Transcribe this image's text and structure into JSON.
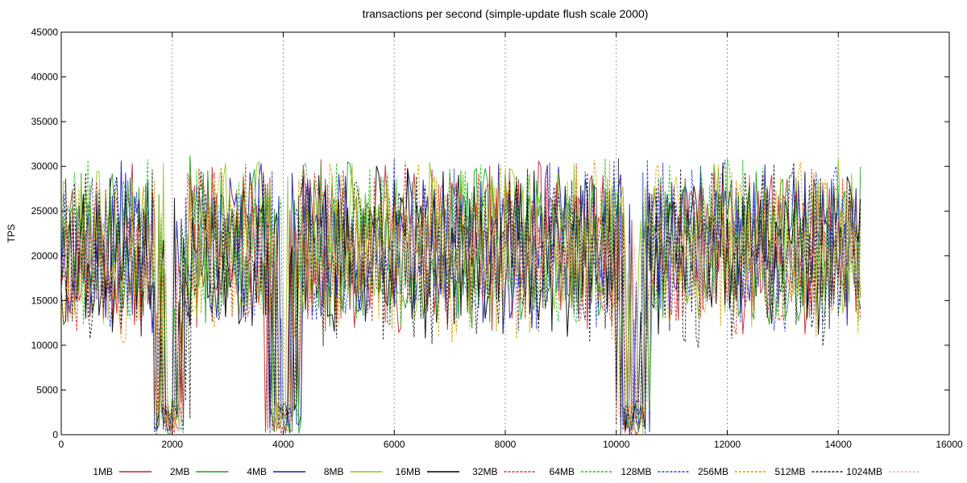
{
  "chart_data": {
    "type": "line",
    "title": "transactions per second (simple-update flush scale 2000)",
    "xlabel": "",
    "ylabel": "TPS",
    "xlim": [
      0,
      16000
    ],
    "ylim": [
      0,
      45000
    ],
    "xticks": [
      0,
      2000,
      4000,
      6000,
      8000,
      10000,
      12000,
      14000,
      16000
    ],
    "yticks": [
      0,
      5000,
      10000,
      15000,
      20000,
      25000,
      30000,
      35000,
      40000,
      45000
    ],
    "grid": "vertical dotted at x ticks",
    "legend_position": "bottom",
    "x_end": 14400,
    "sample_step": 40,
    "series": [
      {
        "name": "1MB",
        "color": "#c1272d",
        "dash": "solid",
        "seed": 11,
        "mean": 21000,
        "amp": 10000,
        "valley_depth": 0.15
      },
      {
        "name": "2MB",
        "color": "#1a9e1a",
        "dash": "solid",
        "seed": 23,
        "mean": 21500,
        "amp": 9800,
        "valley_depth": 0.15
      },
      {
        "name": "4MB",
        "color": "#1a1ab8",
        "dash": "solid",
        "seed": 37,
        "mean": 21000,
        "amp": 9800,
        "valley_depth": 0.15
      },
      {
        "name": "8MB",
        "color": "#8fc61e",
        "dash": "solid",
        "seed": 41,
        "mean": 21500,
        "amp": 9500,
        "valley_depth": 0.12
      },
      {
        "name": "16MB",
        "color": "#000000",
        "dash": "solid",
        "seed": 53,
        "mean": 20500,
        "amp": 10000,
        "valley_depth": 0.15
      },
      {
        "name": "32MB",
        "color": "#e0281e",
        "dash": "dashed",
        "seed": 67,
        "mean": 21000,
        "amp": 10000,
        "valley_depth": 0.15
      },
      {
        "name": "64MB",
        "color": "#22c722",
        "dash": "dashed",
        "seed": 71,
        "mean": 21500,
        "amp": 10000,
        "valley_depth": 0.15
      },
      {
        "name": "128MB",
        "color": "#2a3fd6",
        "dash": "dashed",
        "seed": 83,
        "mean": 21000,
        "amp": 10000,
        "valley_depth": 0.18
      },
      {
        "name": "256MB",
        "color": "#d6a000",
        "dash": "dashed",
        "seed": 97,
        "mean": 20500,
        "amp": 10500,
        "valley_depth": 0.2
      },
      {
        "name": "512MB",
        "color": "#202020",
        "dash": "dashed",
        "seed": 101,
        "mean": 20500,
        "amp": 11000,
        "valley_depth": 0.25
      },
      {
        "name": "1024MB",
        "color": "#f0b0b0",
        "dash": "dashed",
        "seed": 113,
        "mean": 20000,
        "amp": 4500,
        "valley_depth": 0.05
      }
    ]
  }
}
